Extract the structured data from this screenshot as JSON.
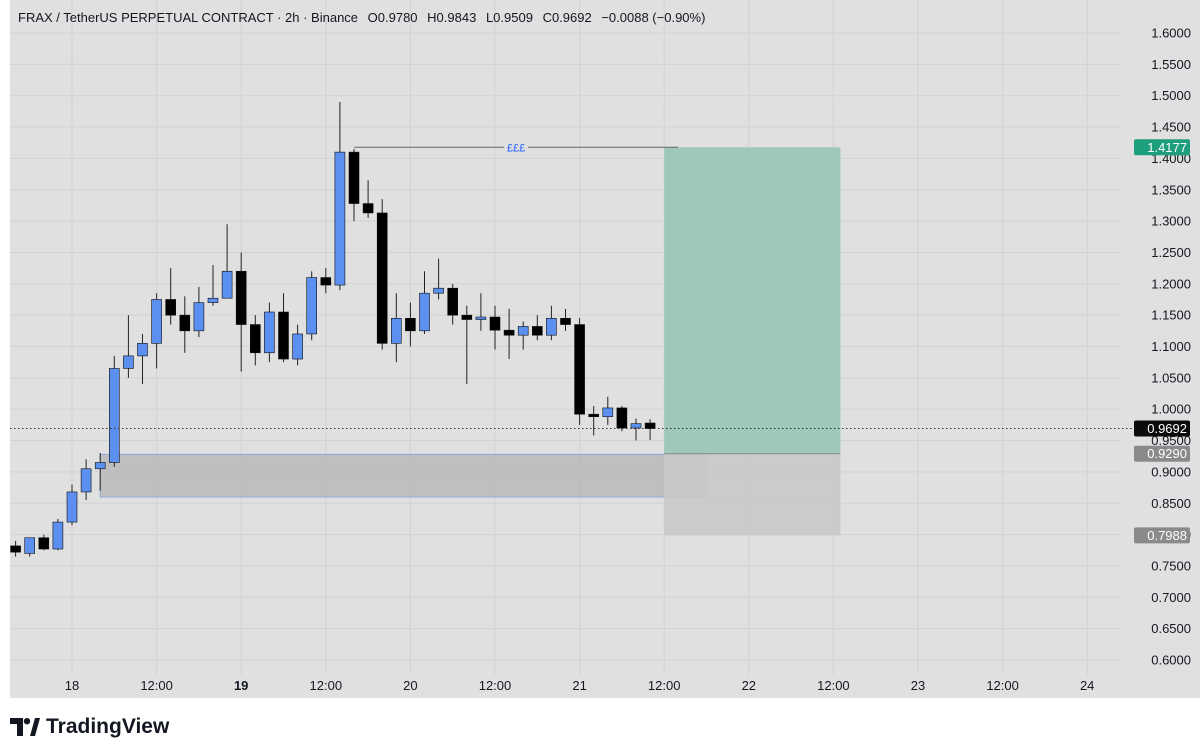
{
  "legend": {
    "symbol": "FRAX / TetherUS PERPETUAL CONTRACT · 2h · Binance",
    "open": "O0.9780",
    "high": "H0.9843",
    "low": "L0.9509",
    "close": "C0.9692",
    "change": "−0.0088 (−0.90%)"
  },
  "branding": {
    "name": "TradingView"
  },
  "colors": {
    "background": "#e0e0e0",
    "grid": "#d2d2d2",
    "up": "#5b8ff0",
    "down": "#000000",
    "wick": "#222222",
    "target_zone": "#9fc7bb",
    "stop_zone": "#c9c9c9",
    "demand_zone": "#b8b8b8",
    "demand_border": "#8fa9d8",
    "label_target": "#1f9e7d",
    "label_current": "#0b0b0b",
    "label_entry": "#8a8a8a",
    "label_stop": "#8a8a8a",
    "annotation": "#2962ff"
  },
  "chart_data": {
    "type": "candlestick",
    "title": "FRAX / TetherUS PERPETUAL CONTRACT · 2h · Binance",
    "ylim": [
      0.58,
      1.63
    ],
    "y_ticks": [
      "1.6000",
      "1.5500",
      "1.5000",
      "1.4500",
      "1.4000",
      "1.3500",
      "1.3000",
      "1.2500",
      "1.2000",
      "1.1500",
      "1.1000",
      "1.0500",
      "1.0000",
      "0.9500",
      "0.9000",
      "0.8500",
      "0.8000",
      "0.7500",
      "0.7000",
      "0.6500",
      "0.6000"
    ],
    "x_range_hours": [
      -14.4,
      172.8
    ],
    "x_ticks": [
      {
        "label": "18",
        "t": 0,
        "bold": false
      },
      {
        "label": "12:00",
        "t": 12,
        "bold": false
      },
      {
        "label": "19",
        "t": 24,
        "bold": true
      },
      {
        "label": "12:00",
        "t": 36,
        "bold": false
      },
      {
        "label": "20",
        "t": 48,
        "bold": false
      },
      {
        "label": "12:00",
        "t": 60,
        "bold": false
      },
      {
        "label": "21",
        "t": 72,
        "bold": false
      },
      {
        "label": "12:00",
        "t": 84,
        "bold": false
      },
      {
        "label": "22",
        "t": 96,
        "bold": false
      },
      {
        "label": "12:00",
        "t": 108,
        "bold": false
      },
      {
        "label": "23",
        "t": 120,
        "bold": false
      },
      {
        "label": "12:00",
        "t": 132,
        "bold": false
      },
      {
        "label": "24",
        "t": 144,
        "bold": false
      }
    ],
    "candles": [
      {
        "t": -8,
        "o": 0.782,
        "h": 0.79,
        "l": 0.765,
        "c": 0.772
      },
      {
        "t": -6,
        "o": 0.77,
        "h": 0.795,
        "l": 0.765,
        "c": 0.795
      },
      {
        "t": -4,
        "o": 0.795,
        "h": 0.8,
        "l": 0.775,
        "c": 0.777
      },
      {
        "t": -2,
        "o": 0.777,
        "h": 0.825,
        "l": 0.775,
        "c": 0.82
      },
      {
        "t": 0,
        "o": 0.82,
        "h": 0.88,
        "l": 0.815,
        "c": 0.868
      },
      {
        "t": 2,
        "o": 0.868,
        "h": 0.92,
        "l": 0.855,
        "c": 0.905
      },
      {
        "t": 4,
        "o": 0.905,
        "h": 0.93,
        "l": 0.87,
        "c": 0.915
      },
      {
        "t": 6,
        "o": 0.915,
        "h": 1.085,
        "l": 0.908,
        "c": 1.065
      },
      {
        "t": 8,
        "o": 1.065,
        "h": 1.15,
        "l": 1.05,
        "c": 1.085
      },
      {
        "t": 10,
        "o": 1.085,
        "h": 1.12,
        "l": 1.04,
        "c": 1.105
      },
      {
        "t": 12,
        "o": 1.105,
        "h": 1.185,
        "l": 1.065,
        "c": 1.175
      },
      {
        "t": 14,
        "o": 1.175,
        "h": 1.225,
        "l": 1.135,
        "c": 1.15
      },
      {
        "t": 16,
        "o": 1.15,
        "h": 1.18,
        "l": 1.09,
        "c": 1.125
      },
      {
        "t": 18,
        "o": 1.125,
        "h": 1.195,
        "l": 1.115,
        "c": 1.17
      },
      {
        "t": 20,
        "o": 1.17,
        "h": 1.23,
        "l": 1.165,
        "c": 1.177
      },
      {
        "t": 22,
        "o": 1.177,
        "h": 1.295,
        "l": 1.18,
        "c": 1.22
      },
      {
        "t": 24,
        "o": 1.22,
        "h": 1.25,
        "l": 1.06,
        "c": 1.135
      },
      {
        "t": 26,
        "o": 1.135,
        "h": 1.15,
        "l": 1.07,
        "c": 1.09
      },
      {
        "t": 28,
        "o": 1.09,
        "h": 1.17,
        "l": 1.075,
        "c": 1.155
      },
      {
        "t": 30,
        "o": 1.155,
        "h": 1.185,
        "l": 1.075,
        "c": 1.08
      },
      {
        "t": 32,
        "o": 1.08,
        "h": 1.135,
        "l": 1.07,
        "c": 1.12
      },
      {
        "t": 34,
        "o": 1.12,
        "h": 1.22,
        "l": 1.11,
        "c": 1.21
      },
      {
        "t": 36,
        "o": 1.21,
        "h": 1.225,
        "l": 1.185,
        "c": 1.198
      },
      {
        "t": 38,
        "o": 1.198,
        "h": 1.49,
        "l": 1.19,
        "c": 1.41
      },
      {
        "t": 40,
        "o": 1.41,
        "h": 1.415,
        "l": 1.3,
        "c": 1.328
      },
      {
        "t": 42,
        "o": 1.328,
        "h": 1.365,
        "l": 1.305,
        "c": 1.313
      },
      {
        "t": 44,
        "o": 1.313,
        "h": 1.335,
        "l": 1.095,
        "c": 1.105
      },
      {
        "t": 46,
        "o": 1.105,
        "h": 1.185,
        "l": 1.075,
        "c": 1.145
      },
      {
        "t": 48,
        "o": 1.145,
        "h": 1.17,
        "l": 1.1,
        "c": 1.125
      },
      {
        "t": 50,
        "o": 1.125,
        "h": 1.22,
        "l": 1.12,
        "c": 1.185
      },
      {
        "t": 52,
        "o": 1.185,
        "h": 1.24,
        "l": 1.175,
        "c": 1.193
      },
      {
        "t": 54,
        "o": 1.193,
        "h": 1.2,
        "l": 1.135,
        "c": 1.15
      },
      {
        "t": 56,
        "o": 1.15,
        "h": 1.165,
        "l": 1.04,
        "c": 1.143
      },
      {
        "t": 58,
        "o": 1.143,
        "h": 1.185,
        "l": 1.125,
        "c": 1.147
      },
      {
        "t": 60,
        "o": 1.147,
        "h": 1.165,
        "l": 1.095,
        "c": 1.126
      },
      {
        "t": 62,
        "o": 1.126,
        "h": 1.16,
        "l": 1.08,
        "c": 1.118
      },
      {
        "t": 64,
        "o": 1.118,
        "h": 1.14,
        "l": 1.095,
        "c": 1.132
      },
      {
        "t": 66,
        "o": 1.132,
        "h": 1.15,
        "l": 1.11,
        "c": 1.118
      },
      {
        "t": 68,
        "o": 1.118,
        "h": 1.165,
        "l": 1.11,
        "c": 1.145
      },
      {
        "t": 70,
        "o": 1.145,
        "h": 1.16,
        "l": 1.125,
        "c": 1.135
      },
      {
        "t": 72,
        "o": 1.135,
        "h": 1.145,
        "l": 0.975,
        "c": 0.992
      },
      {
        "t": 74,
        "o": 0.992,
        "h": 1.005,
        "l": 0.958,
        "c": 0.988
      },
      {
        "t": 76,
        "o": 0.988,
        "h": 1.02,
        "l": 0.975,
        "c": 1.002
      },
      {
        "t": 78,
        "o": 1.002,
        "h": 1.005,
        "l": 0.965,
        "c": 0.97
      },
      {
        "t": 80,
        "o": 0.97,
        "h": 0.985,
        "l": 0.95,
        "c": 0.977
      },
      {
        "t": 82,
        "o": 0.978,
        "h": 0.984,
        "l": 0.951,
        "c": 0.969
      }
    ],
    "annotation": {
      "text": "£££",
      "price": 1.4177,
      "t_start": 40,
      "t_end": 84
    },
    "demand_zone": {
      "t_start": 4,
      "t_end": 90,
      "top": 0.928,
      "bottom": 0.86
    },
    "position": {
      "type": "long",
      "t_start": 84,
      "t_end": 109,
      "target": 1.4177,
      "entry": 0.929,
      "stop": 0.7988
    },
    "current_price": 0.9692,
    "price_labels": [
      {
        "key": "target",
        "text": "1.4177",
        "price": 1.4177
      },
      {
        "key": "current",
        "text": "0.9692",
        "price": 0.9692
      },
      {
        "key": "entry",
        "text": "0.9290",
        "price": 0.929
      },
      {
        "key": "stop",
        "text": "0.7988",
        "price": 0.7988
      }
    ]
  }
}
